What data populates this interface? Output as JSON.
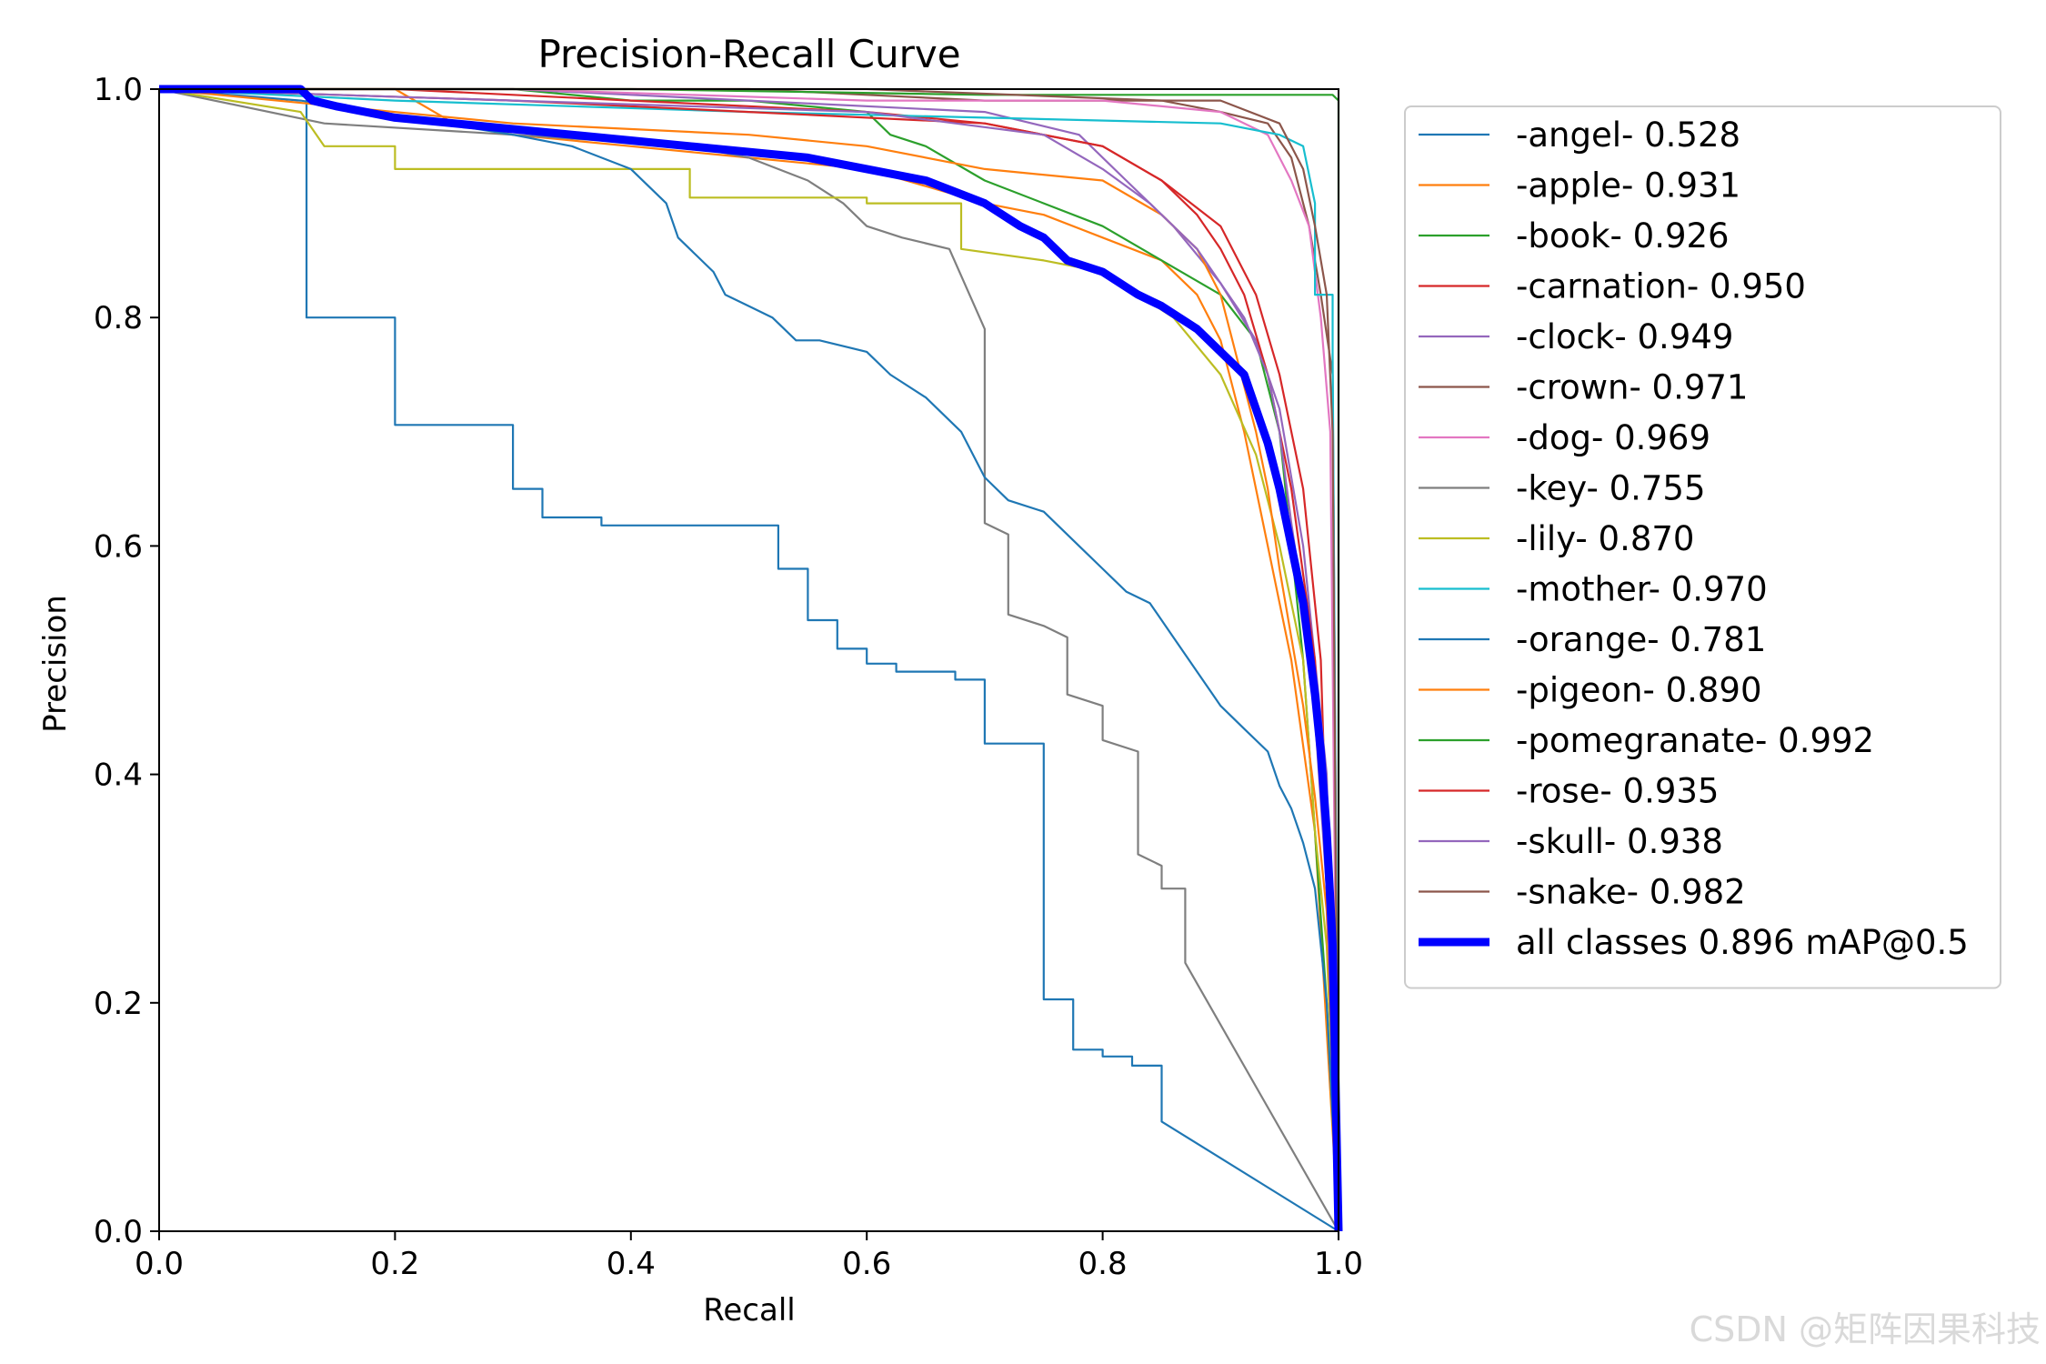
{
  "chart_data": {
    "type": "line",
    "title": "Precision-Recall Curve",
    "xlabel": "Recall",
    "ylabel": "Precision",
    "xlim": [
      0,
      1
    ],
    "ylim": [
      0,
      1
    ],
    "xticks": [
      "0.0",
      "0.2",
      "0.4",
      "0.6",
      "0.8",
      "1.0"
    ],
    "yticks": [
      "0.0",
      "0.2",
      "0.4",
      "0.6",
      "0.8",
      "1.0"
    ],
    "grid": false,
    "legend_position": "outside-right",
    "series": [
      {
        "name": "-angel- 0.528",
        "color": "#1f77b4",
        "width": 1,
        "x": [
          0,
          0.125,
          0.125,
          0.2,
          0.2,
          0.3,
          0.3,
          0.325,
          0.325,
          0.375,
          0.375,
          0.525,
          0.525,
          0.55,
          0.55,
          0.575,
          0.575,
          0.6,
          0.6,
          0.625,
          0.625,
          0.675,
          0.675,
          0.7,
          0.7,
          0.75,
          0.75,
          0.775,
          0.775,
          0.8,
          0.8,
          0.825,
          0.825,
          0.85,
          0.85,
          1.0
        ],
        "y": [
          1.0,
          1.0,
          0.8,
          0.8,
          0.706,
          0.706,
          0.65,
          0.65,
          0.625,
          0.625,
          0.618,
          0.618,
          0.58,
          0.58,
          0.535,
          0.535,
          0.51,
          0.51,
          0.497,
          0.497,
          0.49,
          0.49,
          0.483,
          0.483,
          0.427,
          0.427,
          0.203,
          0.203,
          0.159,
          0.159,
          0.153,
          0.153,
          0.145,
          0.145,
          0.096,
          0.0
        ]
      },
      {
        "name": "-apple- 0.931",
        "color": "#ff7f0e",
        "width": 1,
        "x": [
          0,
          0.2,
          0.25,
          0.3,
          0.4,
          0.5,
          0.6,
          0.7,
          0.75,
          0.8,
          0.85,
          0.88,
          0.9,
          0.92,
          0.94,
          0.96,
          0.98,
          1.0
        ],
        "y": [
          1.0,
          1.0,
          0.97,
          0.96,
          0.95,
          0.94,
          0.93,
          0.9,
          0.89,
          0.87,
          0.85,
          0.82,
          0.78,
          0.7,
          0.6,
          0.5,
          0.35,
          0.0
        ]
      },
      {
        "name": "-book- 0.926",
        "color": "#2ca02c",
        "width": 1,
        "x": [
          0,
          0.3,
          0.4,
          0.5,
          0.6,
          0.62,
          0.65,
          0.7,
          0.75,
          0.8,
          0.85,
          0.9,
          0.93,
          0.95,
          0.97,
          0.99,
          1.0
        ],
        "y": [
          1.0,
          1.0,
          0.99,
          0.99,
          0.98,
          0.96,
          0.95,
          0.92,
          0.9,
          0.88,
          0.85,
          0.82,
          0.78,
          0.7,
          0.5,
          0.2,
          0.0
        ]
      },
      {
        "name": "-carnation- 0.950",
        "color": "#d62728",
        "width": 1,
        "x": [
          0,
          0.2,
          0.4,
          0.6,
          0.7,
          0.8,
          0.85,
          0.9,
          0.93,
          0.95,
          0.97,
          0.985,
          1.0
        ],
        "y": [
          1.0,
          1.0,
          0.99,
          0.98,
          0.97,
          0.95,
          0.92,
          0.88,
          0.82,
          0.75,
          0.65,
          0.5,
          0.0
        ]
      },
      {
        "name": "-clock- 0.949",
        "color": "#9467bd",
        "width": 1,
        "x": [
          0,
          0.3,
          0.5,
          0.7,
          0.78,
          0.82,
          0.86,
          0.9,
          0.93,
          0.95,
          0.97,
          0.99,
          1.0
        ],
        "y": [
          1.0,
          1.0,
          0.99,
          0.98,
          0.96,
          0.92,
          0.88,
          0.83,
          0.78,
          0.72,
          0.6,
          0.4,
          0.0
        ]
      },
      {
        "name": "-crown- 0.971",
        "color": "#8c564b",
        "width": 1,
        "x": [
          0,
          0.3,
          0.5,
          0.7,
          0.85,
          0.9,
          0.94,
          0.96,
          0.975,
          0.985,
          0.995,
          1.0
        ],
        "y": [
          1.0,
          1.0,
          1.0,
          0.99,
          0.99,
          0.98,
          0.97,
          0.94,
          0.88,
          0.82,
          0.75,
          0.0
        ]
      },
      {
        "name": "-dog- 0.969",
        "color": "#e377c2",
        "width": 1,
        "x": [
          0,
          0.3,
          0.6,
          0.8,
          0.9,
          0.94,
          0.96,
          0.975,
          0.985,
          0.993,
          1.0
        ],
        "y": [
          1.0,
          1.0,
          0.99,
          0.99,
          0.98,
          0.96,
          0.92,
          0.88,
          0.8,
          0.7,
          0.0
        ]
      },
      {
        "name": "-key- 0.755",
        "color": "#7f7f7f",
        "width": 1,
        "x": [
          0,
          0.14,
          0.3,
          0.45,
          0.5,
          0.55,
          0.58,
          0.6,
          0.63,
          0.67,
          0.7,
          0.7,
          0.72,
          0.72,
          0.75,
          0.77,
          0.77,
          0.8,
          0.8,
          0.83,
          0.83,
          0.85,
          0.85,
          0.87,
          0.87,
          1.0
        ],
        "y": [
          1.0,
          0.97,
          0.96,
          0.95,
          0.94,
          0.92,
          0.9,
          0.88,
          0.87,
          0.86,
          0.79,
          0.62,
          0.61,
          0.54,
          0.53,
          0.52,
          0.47,
          0.46,
          0.43,
          0.42,
          0.33,
          0.32,
          0.3,
          0.3,
          0.235,
          0.0
        ]
      },
      {
        "name": "-lily- 0.870",
        "color": "#bcbd22",
        "width": 1,
        "x": [
          0,
          0.12,
          0.14,
          0.2,
          0.2,
          0.45,
          0.45,
          0.6,
          0.6,
          0.68,
          0.68,
          0.75,
          0.8,
          0.86,
          0.9,
          0.93,
          0.95,
          0.97,
          0.98,
          0.99,
          1.0
        ],
        "y": [
          1.0,
          0.98,
          0.95,
          0.95,
          0.93,
          0.93,
          0.905,
          0.905,
          0.9,
          0.9,
          0.86,
          0.85,
          0.84,
          0.8,
          0.75,
          0.68,
          0.6,
          0.5,
          0.35,
          0.25,
          0.0
        ]
      },
      {
        "name": "-mother- 0.970",
        "color": "#17becf",
        "width": 1,
        "x": [
          0,
          0.2,
          0.5,
          0.7,
          0.9,
          0.95,
          0.97,
          0.98,
          0.98,
          0.995,
          0.995,
          1.0
        ],
        "y": [
          1.0,
          0.99,
          0.98,
          0.975,
          0.97,
          0.96,
          0.95,
          0.9,
          0.82,
          0.82,
          0.77,
          0.0
        ]
      },
      {
        "name": "-orange- 0.781",
        "color": "#1f77b4",
        "width": 1,
        "x": [
          0,
          0.12,
          0.3,
          0.35,
          0.4,
          0.43,
          0.44,
          0.45,
          0.47,
          0.48,
          0.5,
          0.52,
          0.54,
          0.56,
          0.6,
          0.62,
          0.65,
          0.68,
          0.7,
          0.72,
          0.75,
          0.78,
          0.8,
          0.82,
          0.84,
          0.86,
          0.88,
          0.9,
          0.92,
          0.94,
          0.95,
          0.96,
          0.97,
          0.98,
          0.99,
          1.0
        ],
        "y": [
          1.0,
          0.99,
          0.96,
          0.95,
          0.93,
          0.9,
          0.87,
          0.86,
          0.84,
          0.82,
          0.81,
          0.8,
          0.78,
          0.78,
          0.77,
          0.75,
          0.73,
          0.7,
          0.66,
          0.64,
          0.63,
          0.6,
          0.58,
          0.56,
          0.55,
          0.52,
          0.49,
          0.46,
          0.44,
          0.42,
          0.39,
          0.37,
          0.34,
          0.3,
          0.2,
          0.0
        ]
      },
      {
        "name": "-pigeon- 0.890",
        "color": "#ff7f0e",
        "width": 1,
        "x": [
          0,
          0.3,
          0.5,
          0.6,
          0.7,
          0.8,
          0.85,
          0.88,
          0.9,
          0.91,
          0.92,
          0.93,
          0.94,
          0.95,
          0.96,
          0.97,
          0.98,
          0.99,
          1.0
        ],
        "y": [
          1.0,
          0.97,
          0.96,
          0.95,
          0.93,
          0.92,
          0.89,
          0.86,
          0.82,
          0.78,
          0.74,
          0.7,
          0.65,
          0.58,
          0.52,
          0.46,
          0.38,
          0.28,
          0.0
        ]
      },
      {
        "name": "-pomegranate- 0.992",
        "color": "#2ca02c",
        "width": 1,
        "x": [
          0,
          0.4,
          0.7,
          0.9,
          0.99,
          0.995,
          1.0,
          1.0
        ],
        "y": [
          1.0,
          1.0,
          0.995,
          0.995,
          0.995,
          0.995,
          0.99,
          0.0
        ]
      },
      {
        "name": "-rose- 0.935",
        "color": "#d62728",
        "width": 1,
        "x": [
          0,
          0.3,
          0.5,
          0.7,
          0.8,
          0.85,
          0.88,
          0.9,
          0.92,
          0.94,
          0.96,
          0.98,
          0.99,
          1.0
        ],
        "y": [
          1.0,
          0.99,
          0.98,
          0.97,
          0.95,
          0.92,
          0.89,
          0.86,
          0.82,
          0.75,
          0.65,
          0.5,
          0.3,
          0.0
        ]
      },
      {
        "name": "-skull- 0.938",
        "color": "#9467bd",
        "width": 1,
        "x": [
          0,
          0.3,
          0.6,
          0.75,
          0.8,
          0.84,
          0.88,
          0.9,
          0.92,
          0.94,
          0.95,
          0.96,
          0.97,
          0.98,
          0.99,
          1.0
        ],
        "y": [
          1.0,
          0.99,
          0.98,
          0.96,
          0.93,
          0.9,
          0.86,
          0.83,
          0.8,
          0.75,
          0.7,
          0.62,
          0.55,
          0.45,
          0.3,
          0.0
        ]
      },
      {
        "name": "-snake- 0.982",
        "color": "#8c564b",
        "width": 1,
        "x": [
          0,
          0.3,
          0.6,
          0.85,
          0.9,
          0.95,
          0.97,
          0.98,
          0.99,
          0.995,
          1.0
        ],
        "y": [
          1.0,
          1.0,
          1.0,
          0.99,
          0.99,
          0.97,
          0.93,
          0.88,
          0.82,
          0.7,
          0.0
        ]
      },
      {
        "name": "all classes 0.896 mAP@0.5",
        "color": "#0000ff",
        "width": 3,
        "x": [
          0,
          0.12,
          0.13,
          0.15,
          0.2,
          0.25,
          0.3,
          0.35,
          0.4,
          0.45,
          0.5,
          0.55,
          0.6,
          0.65,
          0.7,
          0.73,
          0.75,
          0.77,
          0.8,
          0.83,
          0.85,
          0.88,
          0.9,
          0.92,
          0.93,
          0.94,
          0.95,
          0.96,
          0.97,
          0.98,
          0.985,
          0.99,
          0.995,
          1.0
        ],
        "y": [
          1.0,
          1.0,
          0.99,
          0.985,
          0.975,
          0.97,
          0.965,
          0.96,
          0.955,
          0.95,
          0.945,
          0.94,
          0.93,
          0.92,
          0.9,
          0.88,
          0.87,
          0.85,
          0.84,
          0.82,
          0.81,
          0.79,
          0.77,
          0.75,
          0.72,
          0.69,
          0.65,
          0.6,
          0.55,
          0.47,
          0.42,
          0.35,
          0.25,
          0.0
        ]
      }
    ]
  },
  "watermark": "CSDN @矩阵因果科技"
}
